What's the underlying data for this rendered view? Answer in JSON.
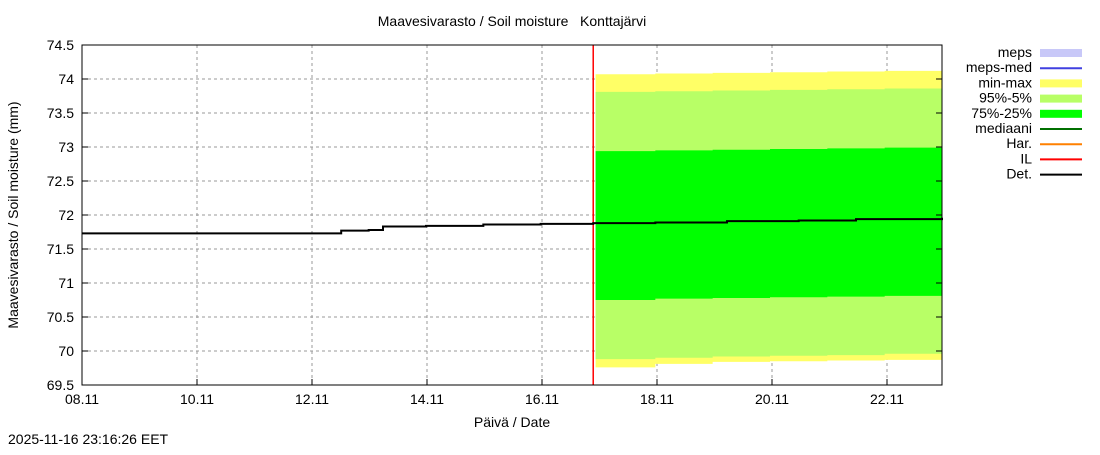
{
  "chart_data": {
    "type": "area",
    "title": "Maavesivarasto / Soil moisture   Konttajärvi",
    "xlabel": "Päivä / Date",
    "ylabel": "Maavesivarasto / Soil moisture (mm)",
    "xlim": [
      "2025-11-08T00:00",
      "2025-11-23T00:00"
    ],
    "ylim": [
      69.5,
      74.5
    ],
    "grid": true,
    "legend_placement": "right",
    "xticks": [
      "08.11",
      "10.11",
      "12.11",
      "14.11",
      "16.11",
      "18.11",
      "20.11",
      "22.11"
    ],
    "yticks": [
      "69.5",
      "70",
      "70.5",
      "71",
      "71.5",
      "72",
      "72.5",
      "73",
      "73.5",
      "74",
      "74.5"
    ],
    "forecast_start": "2025-11-16T22:00",
    "det": {
      "x": [
        "2025-11-08T00:00",
        "2025-11-12T12:00",
        "2025-11-12T12:30",
        "2025-11-13T00:00",
        "2025-11-13T06:00",
        "2025-11-14T00:00",
        "2025-11-15T00:00",
        "2025-11-16T00:00",
        "2025-11-16T22:00",
        "2025-11-18T00:00",
        "2025-11-19T06:00",
        "2025-11-20T12:00",
        "2025-11-21T12:00",
        "2025-11-23T00:00"
      ],
      "y": [
        71.73,
        71.73,
        71.77,
        71.78,
        71.83,
        71.84,
        71.86,
        71.87,
        71.88,
        71.89,
        71.91,
        71.92,
        71.94,
        71.96
      ]
    },
    "bands": {
      "x": [
        "2025-11-16T23:00",
        "2025-11-18T00:00",
        "2025-11-19T00:00",
        "2025-11-20T00:00",
        "2025-11-21T00:00",
        "2025-11-22T00:00",
        "2025-11-23T00:00"
      ],
      "minmax_hi": [
        74.07,
        74.08,
        74.09,
        74.1,
        74.11,
        74.12,
        74.13
      ],
      "minmax_lo": [
        69.76,
        69.81,
        69.84,
        69.85,
        69.86,
        69.87,
        69.88
      ],
      "p95_hi": [
        73.81,
        73.82,
        73.83,
        73.84,
        73.85,
        73.86,
        73.87
      ],
      "p95_lo": [
        69.88,
        69.9,
        69.92,
        69.93,
        69.94,
        69.96,
        69.97
      ],
      "p75_hi": [
        72.94,
        72.95,
        72.96,
        72.97,
        72.98,
        72.99,
        73.0
      ],
      "p75_lo": [
        70.75,
        70.77,
        70.78,
        70.79,
        70.8,
        70.81,
        70.82
      ]
    },
    "legend": [
      {
        "name": "meps",
        "color": "#c8c8f8",
        "kind": "fill"
      },
      {
        "name": "meps-med",
        "color": "#4040e0",
        "kind": "line"
      },
      {
        "name": "min-max",
        "color": "#ffff66",
        "kind": "fill"
      },
      {
        "name": "95%-5%",
        "color": "#b8ff66",
        "kind": "fill"
      },
      {
        "name": "75%-25%",
        "color": "#00ff00",
        "kind": "fill"
      },
      {
        "name": "mediaani",
        "color": "#007000",
        "kind": "line"
      },
      {
        "name": "Har.",
        "color": "#ff8000",
        "kind": "line"
      },
      {
        "name": "IL",
        "color": "#ff0000",
        "kind": "line"
      },
      {
        "name": "Det.",
        "color": "#000000",
        "kind": "line"
      }
    ]
  },
  "timestamp": "2025-11-16 23:16:26 EET"
}
